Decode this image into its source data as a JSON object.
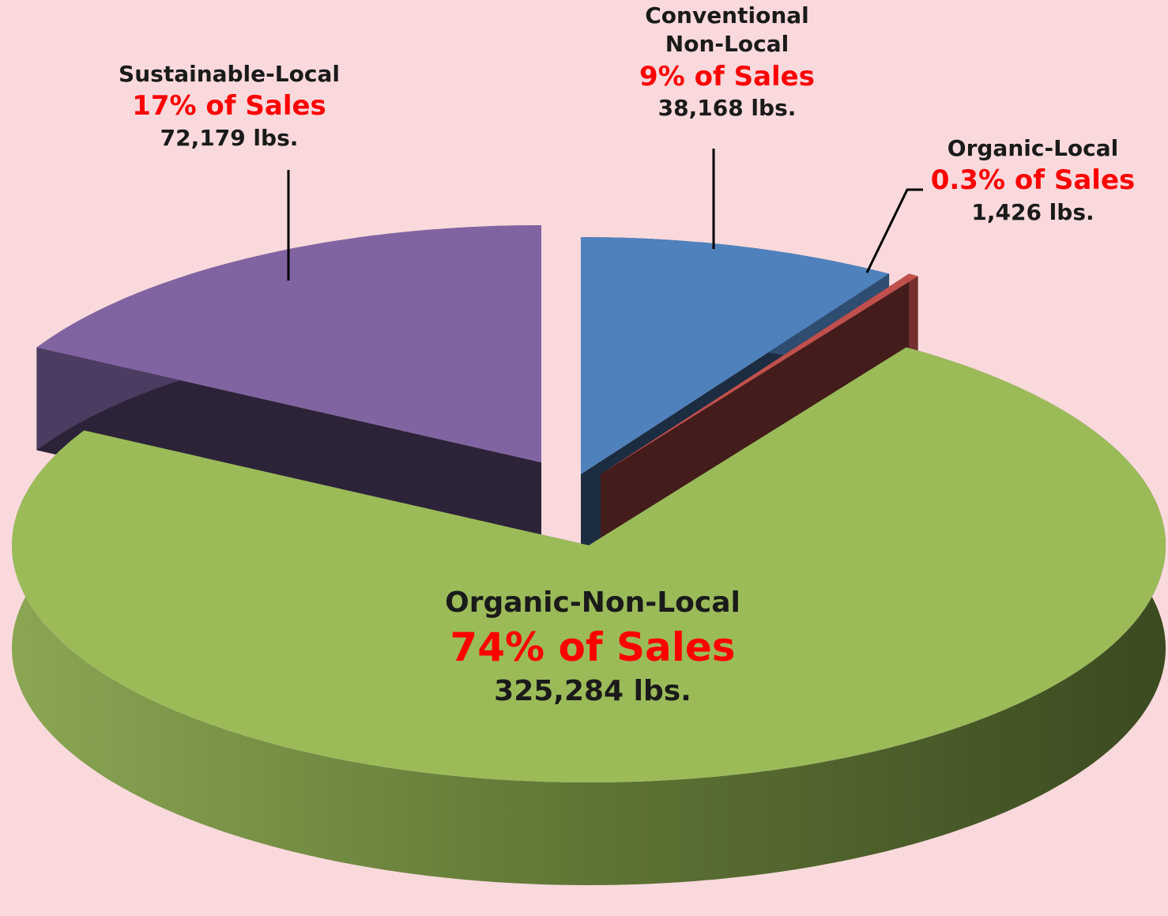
{
  "chart_data": {
    "type": "pie3d",
    "categories": [
      "Conventional Non-Local",
      "Organic-Local",
      "Organic-Non-Local",
      "Sustainable-Local"
    ],
    "values": [
      9,
      0.3,
      74,
      17
    ],
    "value_labels": [
      "9% of Sales",
      "0.3% of Sales",
      "74% of Sales",
      "17% of Sales"
    ],
    "weights": [
      38168,
      1426,
      325284,
      72179
    ],
    "weight_labels": [
      "38,168 lbs.",
      "1,426 lbs.",
      "325,284 lbs.",
      "72,179 lbs."
    ],
    "colors": [
      "#4f81bd",
      "#c0504d",
      "#9bbb59",
      "#8064a2"
    ]
  }
}
